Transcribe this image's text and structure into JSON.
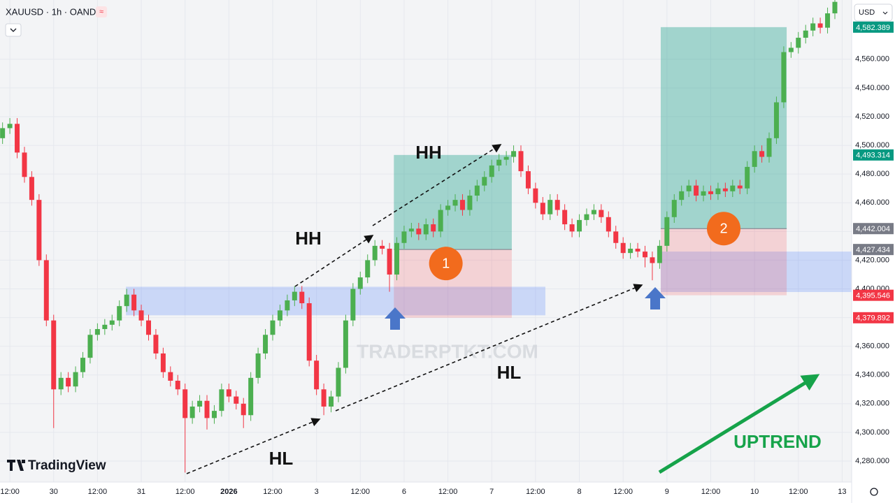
{
  "chart_data": {
    "type": "candlestick",
    "title": "XAUUSD · 1h · OANDA",
    "currency": "USD",
    "brand": "TradingView",
    "watermark": "TRADERPTKT.COM",
    "up_color": "#4caf50",
    "down_color": "#f23645",
    "grid": true,
    "xlim": [
      0.3,
      233.6
    ],
    "ylim": [
      4265.4,
      4601.3
    ],
    "xticks": [
      {
        "value": 3,
        "label": "12:00"
      },
      {
        "value": 15,
        "label": "30"
      },
      {
        "value": 27,
        "label": "12:00"
      },
      {
        "value": 39,
        "label": "31"
      },
      {
        "value": 51,
        "label": "12:00"
      },
      {
        "value": 63,
        "label": "2026"
      },
      {
        "value": 75,
        "label": "12:00"
      },
      {
        "value": 87,
        "label": "3"
      },
      {
        "value": 99,
        "label": "12:00"
      },
      {
        "value": 111,
        "label": "6"
      },
      {
        "value": 123,
        "label": "12:00"
      },
      {
        "value": 135,
        "label": "7"
      },
      {
        "value": 147,
        "label": "12:00"
      },
      {
        "value": 159,
        "label": "8"
      },
      {
        "value": 171,
        "label": "12:00"
      },
      {
        "value": 183,
        "label": "9"
      },
      {
        "value": 195,
        "label": "12:00"
      },
      {
        "value": 207,
        "label": "10"
      },
      {
        "value": 219,
        "label": "12:00"
      },
      {
        "value": 231,
        "label": "13"
      }
    ],
    "yticks": [
      {
        "value": 4280,
        "label": "4,280.000"
      },
      {
        "value": 4300,
        "label": "4,300.000"
      },
      {
        "value": 4320,
        "label": "4,320.000"
      },
      {
        "value": 4340,
        "label": "4,340.000"
      },
      {
        "value": 4360,
        "label": "4,360.000"
      },
      {
        "value": 4380,
        "label": "4,380.000"
      },
      {
        "value": 4400,
        "label": "4,400.000"
      },
      {
        "value": 4420,
        "label": "4,420.000"
      },
      {
        "value": 4440,
        "label": "4,440.000"
      },
      {
        "value": 4460,
        "label": "4,460.000"
      },
      {
        "value": 4480,
        "label": "4,480.000"
      },
      {
        "value": 4500,
        "label": "4,500.000"
      },
      {
        "value": 4520,
        "label": "4,520.000"
      },
      {
        "value": 4540,
        "label": "4,540.000"
      },
      {
        "value": 4560,
        "label": "4,560.000"
      }
    ],
    "x": [
      1,
      3,
      5,
      7,
      9,
      11,
      13,
      15,
      17,
      19,
      21,
      23,
      25,
      27,
      29,
      31,
      33,
      35,
      37,
      39,
      41,
      43,
      45,
      47,
      49,
      51,
      53,
      55,
      57,
      59,
      61,
      63,
      65,
      67,
      69,
      71,
      73,
      75,
      77,
      79,
      81,
      83,
      85,
      87,
      89,
      91,
      93,
      95,
      97,
      99,
      101,
      103,
      105,
      107,
      109,
      111,
      113,
      115,
      117,
      119,
      121,
      123,
      125,
      127,
      129,
      131,
      133,
      135,
      137,
      139,
      141,
      143,
      145,
      147,
      149,
      151,
      153,
      155,
      157,
      159,
      161,
      163,
      165,
      167,
      169,
      171,
      173,
      175,
      177,
      179,
      181,
      183,
      185,
      187,
      189,
      191,
      193,
      195,
      197,
      199,
      201,
      203,
      205,
      207,
      209,
      211,
      213,
      215,
      217,
      219,
      221,
      223,
      225,
      227,
      229
    ],
    "open": [
      4505,
      4512,
      4515,
      4495,
      4478,
      4462,
      4420,
      4378,
      4330,
      4338,
      4332,
      4342,
      4352,
      4368,
      4372,
      4375,
      4378,
      4388,
      4396,
      4385,
      4378,
      4368,
      4355,
      4342,
      4336,
      4330,
      4310,
      4318,
      4322,
      4310,
      4315,
      4330,
      4325,
      4320,
      4312,
      4338,
      4355,
      4368,
      4378,
      4385,
      4392,
      4398,
      4390,
      4350,
      4330,
      4318,
      4325,
      4345,
      4378,
      4400,
      4408,
      4420,
      4430,
      4428,
      4410,
      4432,
      4440,
      4442,
      4438,
      4445,
      4440,
      4455,
      4458,
      4462,
      4455,
      4465,
      4472,
      4478,
      4486,
      4490,
      4492,
      4496,
      4482,
      4470,
      4460,
      4452,
      4462,
      4455,
      4445,
      4440,
      4448,
      4452,
      4455,
      4450,
      4440,
      4432,
      4425,
      4428,
      4426,
      4422,
      4418,
      4430,
      4450,
      4462,
      4468,
      4472,
      4465,
      4468,
      4466,
      4470,
      4468,
      4472,
      4470,
      4485,
      4496,
      4492,
      4505,
      4530,
      4565,
      4568,
      4575,
      4580,
      4585,
      4582,
      4592
    ],
    "high": [
      4516,
      4519,
      4519,
      4499,
      4482,
      4466,
      4424,
      4382,
      4342,
      4342,
      4346,
      4356,
      4372,
      4376,
      4379,
      4382,
      4392,
      4400,
      4400,
      4389,
      4382,
      4372,
      4359,
      4346,
      4340,
      4334,
      4322,
      4326,
      4326,
      4319,
      4334,
      4334,
      4329,
      4324,
      4342,
      4359,
      4372,
      4382,
      4389,
      4396,
      4402,
      4402,
      4394,
      4354,
      4334,
      4329,
      4349,
      4382,
      4404,
      4412,
      4424,
      4434,
      4434,
      4432,
      4436,
      4444,
      4446,
      4446,
      4449,
      4449,
      4459,
      4462,
      4466,
      4466,
      4469,
      4476,
      4482,
      4490,
      4494,
      4496,
      4500,
      4500,
      4486,
      4474,
      4464,
      4466,
      4466,
      4459,
      4449,
      4452,
      4456,
      4459,
      4459,
      4454,
      4444,
      4436,
      4432,
      4432,
      4430,
      4426,
      4434,
      4454,
      4466,
      4472,
      4476,
      4476,
      4472,
      4472,
      4474,
      4474,
      4476,
      4476,
      4489,
      4500,
      4500,
      4509,
      4534,
      4569,
      4572,
      4579,
      4584,
      4589,
      4589,
      4596,
      4604
    ],
    "low": [
      4501,
      4508,
      4491,
      4474,
      4458,
      4416,
      4374,
      4303,
      4326,
      4328,
      4328,
      4338,
      4348,
      4364,
      4368,
      4371,
      4374,
      4384,
      4381,
      4374,
      4364,
      4351,
      4338,
      4332,
      4326,
      4272,
      4306,
      4314,
      4302,
      4306,
      4311,
      4321,
      4316,
      4303,
      4308,
      4334,
      4351,
      4364,
      4374,
      4381,
      4388,
      4386,
      4346,
      4326,
      4312,
      4314,
      4321,
      4341,
      4374,
      4396,
      4404,
      4416,
      4424,
      4398,
      4406,
      4428,
      4436,
      4434,
      4434,
      4436,
      4436,
      4451,
      4454,
      4451,
      4451,
      4461,
      4468,
      4474,
      4482,
      4486,
      4488,
      4478,
      4466,
      4456,
      4448,
      4448,
      4451,
      4441,
      4436,
      4436,
      4444,
      4448,
      4446,
      4436,
      4428,
      4421,
      4421,
      4422,
      4415,
      4406,
      4414,
      4426,
      4446,
      4458,
      4464,
      4461,
      4461,
      4462,
      4462,
      4464,
      4464,
      4466,
      4466,
      4481,
      4488,
      4488,
      4501,
      4526,
      4561,
      4564,
      4571,
      4576,
      4578,
      4578,
      4588
    ],
    "close": [
      4512,
      4515,
      4495,
      4478,
      4462,
      4420,
      4378,
      4330,
      4338,
      4332,
      4342,
      4352,
      4368,
      4372,
      4375,
      4378,
      4388,
      4396,
      4385,
      4378,
      4368,
      4355,
      4342,
      4336,
      4330,
      4310,
      4318,
      4322,
      4310,
      4315,
      4330,
      4325,
      4320,
      4312,
      4338,
      4355,
      4368,
      4378,
      4385,
      4392,
      4398,
      4390,
      4350,
      4330,
      4318,
      4325,
      4345,
      4378,
      4400,
      4408,
      4420,
      4430,
      4428,
      4410,
      4432,
      4440,
      4442,
      4438,
      4445,
      4440,
      4455,
      4458,
      4462,
      4455,
      4465,
      4472,
      4478,
      4486,
      4490,
      4492,
      4496,
      4482,
      4470,
      4460,
      4452,
      4462,
      4455,
      4445,
      4440,
      4448,
      4452,
      4455,
      4450,
      4440,
      4432,
      4425,
      4428,
      4426,
      4422,
      4418,
      4430,
      4450,
      4462,
      4468,
      4472,
      4465,
      4468,
      4466,
      4470,
      4468,
      4472,
      4470,
      4485,
      4496,
      4492,
      4505,
      4530,
      4565,
      4568,
      4575,
      4580,
      4585,
      4582,
      4592,
      4600
    ],
    "zone_color": "#2962ff",
    "zones": [
      {
        "x": [
          34.8,
          149.7
        ],
        "y": [
          4381.6,
          4401.5
        ]
      },
      {
        "x": [
          181.3,
          233.6
        ],
        "y": [
          4397.8,
          4426
        ]
      }
    ],
    "positions": [
      {
        "label": "1",
        "x": [
          108.2,
          140.5
        ],
        "entry": {
          "value": 4427.434,
          "label": "4,427.434"
        },
        "target": {
          "value": 4493.314,
          "label": "4,493.314"
        },
        "stop": {
          "value": 4379.892,
          "label": "4,379.892"
        }
      },
      {
        "label": "2",
        "x": [
          181.3,
          215.8
        ],
        "entry": {
          "value": 4442.004,
          "label": "4,442.004"
        },
        "target": {
          "value": 4582.389,
          "label": "4,582.389"
        },
        "stop": {
          "value": 4395.546,
          "label": "4,395.546"
        }
      }
    ],
    "annotations": [
      "HH",
      "HH",
      "HL",
      "HL"
    ],
    "trend_label": "UPTREND"
  }
}
